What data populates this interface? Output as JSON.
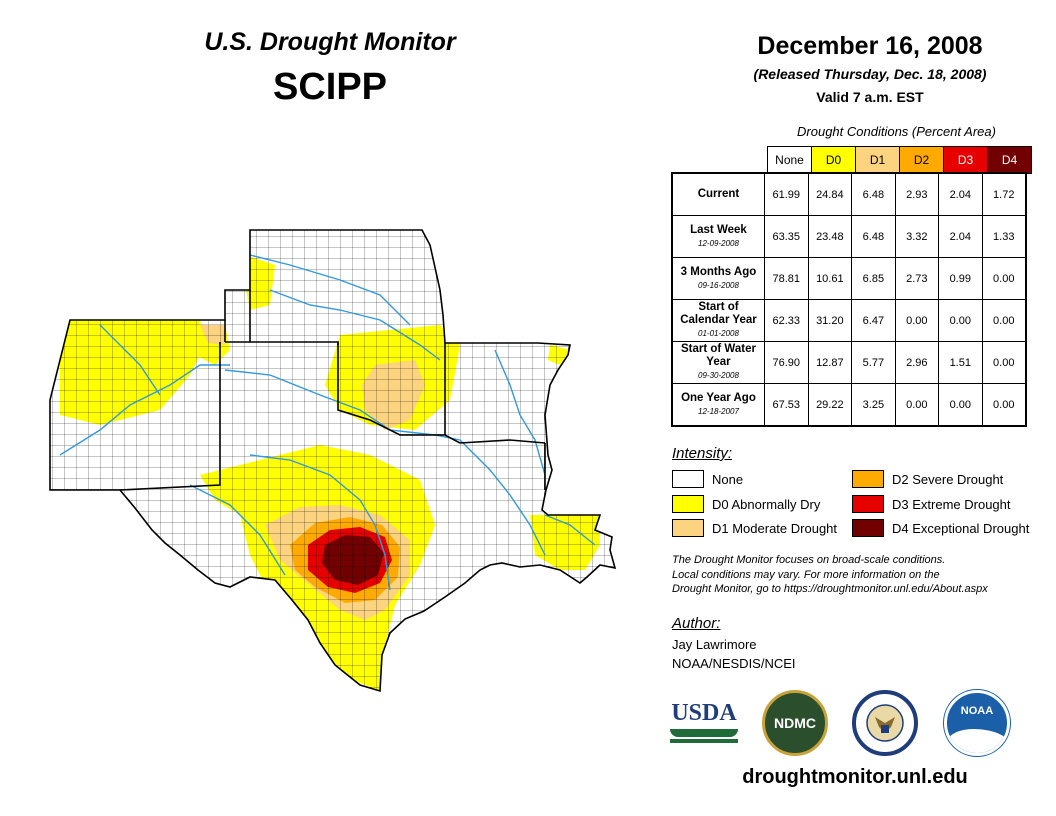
{
  "header": {
    "title": "U.S. Drought Monitor",
    "region": "SCIPP"
  },
  "date": {
    "title": "December 16, 2008",
    "released": "(Released Thursday, Dec. 18, 2008)",
    "valid": "Valid 7 a.m. EST"
  },
  "conditions": {
    "caption": "Drought Conditions (Percent Area)",
    "categories": [
      {
        "label": "None",
        "color": "#ffffff",
        "text_color": "#000000"
      },
      {
        "label": "D0",
        "color": "#ffff00",
        "text_color": "#000000"
      },
      {
        "label": "D1",
        "color": "#fcd37f",
        "text_color": "#000000"
      },
      {
        "label": "D2",
        "color": "#ffaa00",
        "text_color": "#000000"
      },
      {
        "label": "D3",
        "color": "#e60000",
        "text_color": "#ffffff"
      },
      {
        "label": "D4",
        "color": "#730000",
        "text_color": "#ffffff"
      }
    ],
    "rows": [
      {
        "label": "Current",
        "sublabel": "",
        "values": [
          "61.99",
          "24.84",
          "6.48",
          "2.93",
          "2.04",
          "1.72"
        ]
      },
      {
        "label": "Last Week",
        "sublabel": "12-09-2008",
        "values": [
          "63.35",
          "23.48",
          "6.48",
          "3.32",
          "2.04",
          "1.33"
        ]
      },
      {
        "label": "3 Months Ago",
        "sublabel": "09-16-2008",
        "values": [
          "78.81",
          "10.61",
          "6.85",
          "2.73",
          "0.99",
          "0.00"
        ]
      },
      {
        "label": "Start of Calendar Year",
        "sublabel": "01-01-2008",
        "values": [
          "62.33",
          "31.20",
          "6.47",
          "0.00",
          "0.00",
          "0.00"
        ]
      },
      {
        "label": "Start of Water Year",
        "sublabel": "09-30-2008",
        "values": [
          "76.90",
          "12.87",
          "5.77",
          "2.96",
          "1.51",
          "0.00"
        ]
      },
      {
        "label": "One Year Ago",
        "sublabel": "12-18-2007",
        "values": [
          "67.53",
          "29.22",
          "3.25",
          "0.00",
          "0.00",
          "0.00"
        ]
      }
    ]
  },
  "legend": {
    "title": "Intensity:",
    "items": [
      {
        "label": "None",
        "color": "#ffffff"
      },
      {
        "label": "D0 Abnormally Dry",
        "color": "#ffff00"
      },
      {
        "label": "D1 Moderate Drought",
        "color": "#fcd37f"
      },
      {
        "label": "D2 Severe Drought",
        "color": "#ffaa00"
      },
      {
        "label": "D3 Extreme Drought",
        "color": "#e60000"
      },
      {
        "label": "D4 Exceptional Drought",
        "color": "#730000"
      }
    ]
  },
  "note": {
    "line1": "The Drought Monitor focuses on broad-scale conditions.",
    "line2": "Local conditions may vary. For more information on the",
    "line3": "Drought Monitor, go to https://droughtmonitor.unl.edu/About.aspx"
  },
  "author": {
    "label": "Author:",
    "name": "Jay Lawrimore",
    "org": "NOAA/NESDIS/NCEI"
  },
  "logos": {
    "usda": "USDA",
    "ndmc": "NDMC",
    "noaa": "NOAA"
  },
  "website": "droughtmonitor.unl.edu"
}
